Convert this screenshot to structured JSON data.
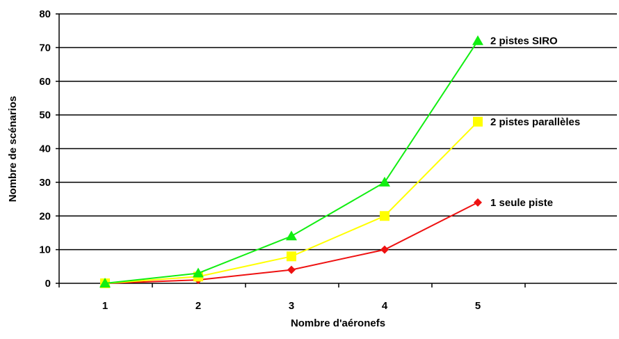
{
  "chart_data": {
    "type": "line",
    "title": "",
    "xlabel": "Nombre d'aéronefs",
    "ylabel": "Nombre de scénarios",
    "x": [
      1,
      2,
      3,
      4,
      5
    ],
    "x_ticks": [
      "1",
      "2",
      "3",
      "4",
      "5"
    ],
    "y_ticks": [
      "0",
      "10",
      "20",
      "30",
      "40",
      "50",
      "60",
      "70",
      "80"
    ],
    "ylim": [
      0,
      80
    ],
    "grid": true,
    "legend": "labels at line ends",
    "series": [
      {
        "name": "1 seule piste",
        "values": [
          0,
          1,
          4,
          10,
          24
        ],
        "color": "#ee1111",
        "marker": "diamond"
      },
      {
        "name": "2 pistes parallèles",
        "values": [
          0,
          2,
          8,
          20,
          48
        ],
        "color": "#ffff00",
        "marker": "square"
      },
      {
        "name": "2 pistes SIRO",
        "values": [
          0,
          3,
          14,
          30,
          72
        ],
        "color": "#11ee11",
        "marker": "triangle"
      }
    ]
  }
}
